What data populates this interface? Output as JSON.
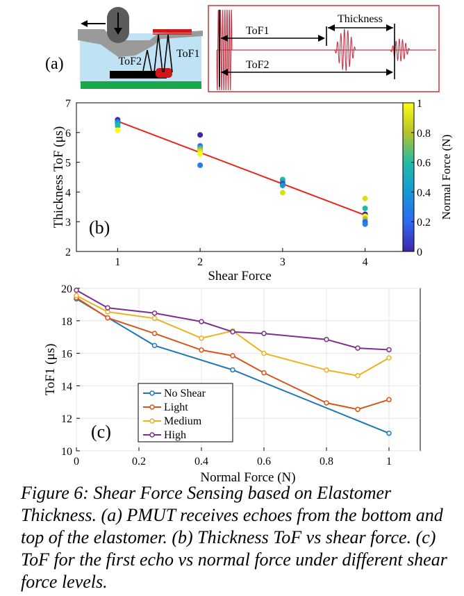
{
  "panel_a": {
    "label": "(a)",
    "tof2_label": "ToF2",
    "tof1_label": "ToF1",
    "waveform_thickness_label": "Thickness",
    "waveform_tof1_label": "ToF1",
    "waveform_tof2_label": "ToF2"
  },
  "colors": {
    "fit_line": "#e8241c",
    "elastomer": "#bfe3f5",
    "base": "#1aa84c",
    "pmut": "#000000",
    "target": "#d01818",
    "waveform": "#c0394a",
    "frame": "#c4343c",
    "no_shear": "#1f77b4",
    "light": "#d9541a",
    "medium": "#edb120",
    "high": "#7e2f8e"
  },
  "chart_data": [
    {
      "type": "scatter",
      "panel_label": "(b)",
      "xlabel": "Shear Force",
      "ylabel": "Thickness ToF (μs)",
      "colorbar_label": "Normal Force (N)",
      "xlim": [
        0.5,
        4.5
      ],
      "ylim": [
        2,
        7
      ],
      "xticks": [
        "1",
        "2",
        "3",
        "4"
      ],
      "yticks": [
        "2",
        "3",
        "4",
        "5",
        "6",
        "7"
      ],
      "cticks": [
        "0",
        "0.2",
        "0.4",
        "0.6",
        "0.8",
        "1"
      ],
      "colormap": "parula",
      "grid": false,
      "points": [
        {
          "x": 1,
          "y": 6.43,
          "c": 0.0
        },
        {
          "x": 1,
          "y": 6.38,
          "c": 0.1
        },
        {
          "x": 1,
          "y": 6.35,
          "c": 0.25
        },
        {
          "x": 1,
          "y": 6.32,
          "c": 0.4
        },
        {
          "x": 1,
          "y": 6.28,
          "c": 0.5
        },
        {
          "x": 1,
          "y": 6.22,
          "c": 0.6
        },
        {
          "x": 1,
          "y": 6.08,
          "c": 1.0
        },
        {
          "x": 2,
          "y": 5.92,
          "c": 0.0
        },
        {
          "x": 2,
          "y": 5.55,
          "c": 0.25
        },
        {
          "x": 2,
          "y": 5.48,
          "c": 0.6
        },
        {
          "x": 2,
          "y": 5.42,
          "c": 0.8
        },
        {
          "x": 2,
          "y": 5.35,
          "c": 0.9
        },
        {
          "x": 2,
          "y": 5.28,
          "c": 1.0
        },
        {
          "x": 2,
          "y": 4.9,
          "c": 0.3
        },
        {
          "x": 3,
          "y": 4.42,
          "c": 0.6
        },
        {
          "x": 3,
          "y": 4.35,
          "c": 0.5
        },
        {
          "x": 3,
          "y": 4.28,
          "c": 0.1
        },
        {
          "x": 3,
          "y": 4.22,
          "c": 0.4
        },
        {
          "x": 3,
          "y": 3.98,
          "c": 0.9
        },
        {
          "x": 4,
          "y": 3.78,
          "c": 0.9
        },
        {
          "x": 4,
          "y": 3.45,
          "c": 0.6
        },
        {
          "x": 4,
          "y": 3.25,
          "c": 0.0
        },
        {
          "x": 4,
          "y": 3.18,
          "c": 1.0
        },
        {
          "x": 4,
          "y": 3.1,
          "c": 0.8
        },
        {
          "x": 4,
          "y": 3.0,
          "c": 0.2
        },
        {
          "x": 4,
          "y": 2.92,
          "c": 0.3
        }
      ],
      "fit_line": {
        "x": [
          1,
          4
        ],
        "y": [
          6.38,
          3.22
        ]
      }
    },
    {
      "type": "line",
      "panel_label": "(c)",
      "xlabel": "Normal Force (N)",
      "ylabel": "ToF1 (μs)",
      "xlim": [
        0,
        1.1
      ],
      "ylim": [
        10,
        20
      ],
      "xticks": [
        "0",
        "0.2",
        "0.4",
        "0.6",
        "0.8",
        "1"
      ],
      "yticks": [
        "10",
        "12",
        "14",
        "16",
        "18",
        "20"
      ],
      "grid": true,
      "legend_position": "bottom-left",
      "series": [
        {
          "name": "No Shear",
          "color": "#1f77b4",
          "x": [
            0,
            0.25,
            0.5,
            1
          ],
          "y": [
            19.35,
            16.48,
            14.98,
            11.08
          ]
        },
        {
          "name": "Light",
          "color": "#d9541a",
          "x": [
            0,
            0.1,
            0.25,
            0.4,
            0.5,
            0.6,
            0.8,
            0.9,
            1
          ],
          "y": [
            19.42,
            18.18,
            17.22,
            16.2,
            15.85,
            14.8,
            12.95,
            12.55,
            13.15
          ]
        },
        {
          "name": "Medium",
          "color": "#edb120",
          "x": [
            0,
            0.1,
            0.25,
            0.4,
            0.5,
            0.6,
            0.8,
            0.9,
            1
          ],
          "y": [
            19.55,
            18.55,
            18.15,
            16.93,
            17.38,
            16.0,
            14.97,
            14.62,
            15.72
          ]
        },
        {
          "name": "High",
          "color": "#7e2f8e",
          "x": [
            0,
            0.1,
            0.25,
            0.4,
            0.5,
            0.6,
            0.8,
            0.9,
            1
          ],
          "y": [
            19.88,
            18.8,
            18.47,
            17.95,
            17.32,
            17.22,
            16.85,
            16.32,
            16.22
          ]
        }
      ]
    }
  ],
  "caption": "Figure 6: Shear Force Sensing based on Elastomer Thickness. (a) PMUT receives echoes from the bottom and top of the elastomer. (b) Thickness ToF vs shear force. (c) ToF for the first echo vs normal force under different shear force levels."
}
